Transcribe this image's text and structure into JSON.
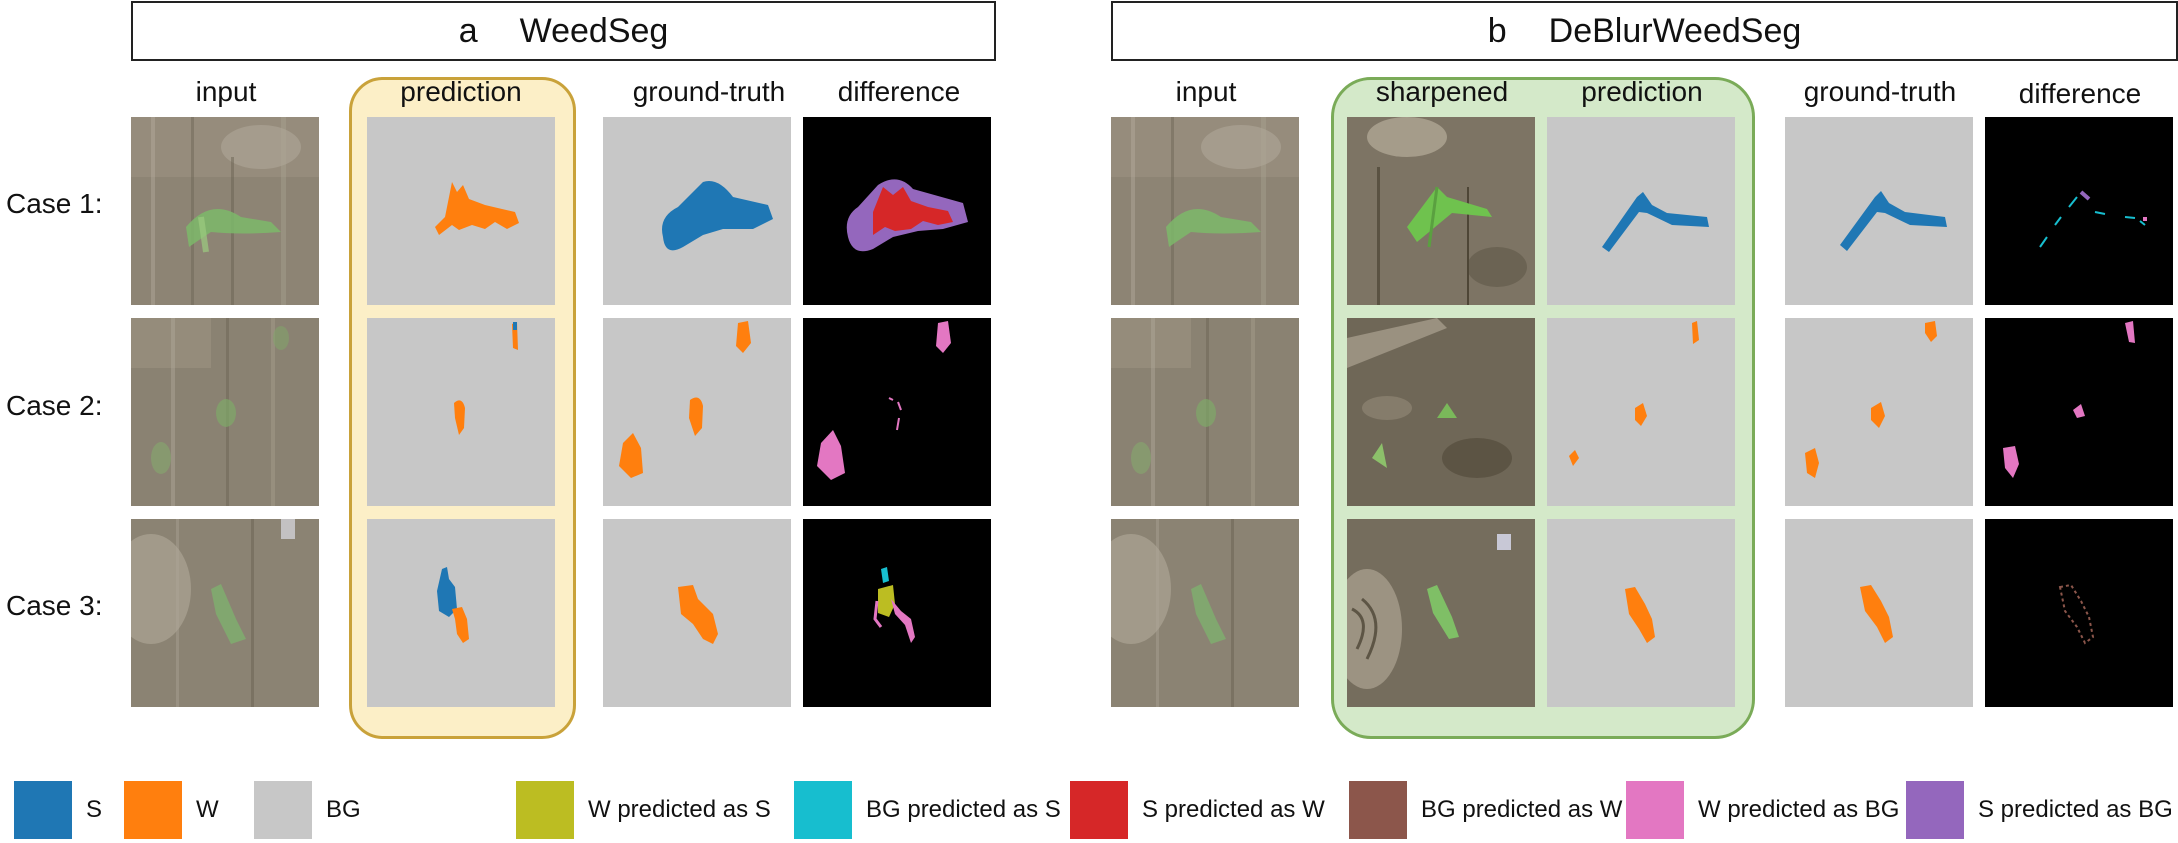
{
  "panels": [
    {
      "letter": "a",
      "title": "WeedSeg"
    },
    {
      "letter": "b",
      "title": "DeBlurWeedSeg"
    }
  ],
  "columns_a": [
    "input",
    "prediction",
    "ground-truth",
    "difference"
  ],
  "columns_b": [
    "input",
    "sharpened",
    "prediction",
    "ground-truth",
    "difference"
  ],
  "rows": [
    "Case 1:",
    "Case 2:",
    "Case 3:"
  ],
  "legend": [
    {
      "label": "S",
      "color": "#1f77b4"
    },
    {
      "label": "W",
      "color": "#ff7f0e"
    },
    {
      "label": "BG",
      "color": "#c7c7c7"
    },
    {
      "label": "W predicted as S",
      "color": "#bcbd22"
    },
    {
      "label": "BG predicted as S",
      "color": "#17becf"
    },
    {
      "label": "S predicted as W",
      "color": "#d62728"
    },
    {
      "label": "BG predicted as W",
      "color": "#8c564b"
    },
    {
      "label": "W predicted as BG",
      "color": "#e377c2"
    },
    {
      "label": "S predicted as BG",
      "color": "#9467bd"
    }
  ]
}
